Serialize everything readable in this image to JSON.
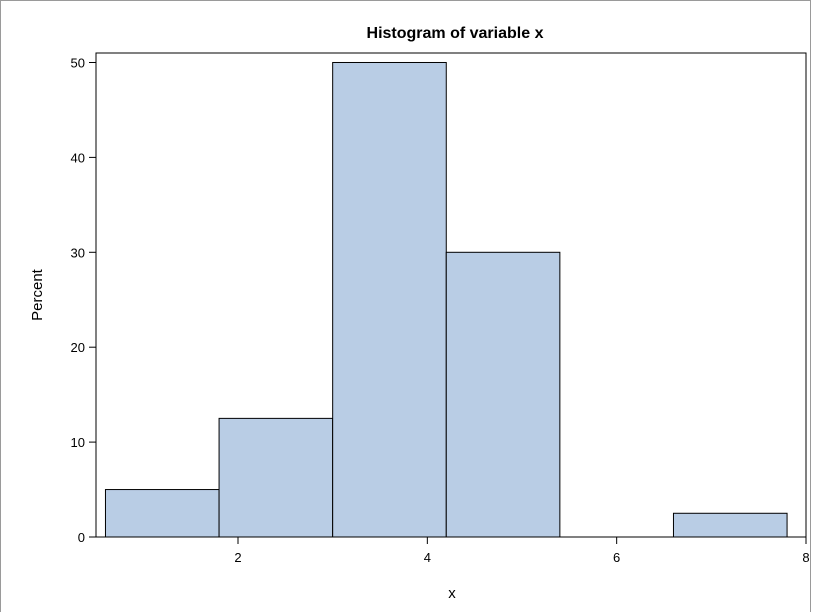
{
  "chart_data": {
    "type": "bar",
    "title": "Histogram of variable x",
    "xlabel": "x",
    "ylabel": "Percent",
    "xlim": [
      0.5,
      8
    ],
    "ylim": [
      0,
      51
    ],
    "x_ticks": [
      2,
      4,
      6,
      8
    ],
    "y_ticks": [
      0,
      10,
      20,
      30,
      40,
      50
    ],
    "bins": [
      {
        "start": 0.6,
        "end": 1.8,
        "value": 5
      },
      {
        "start": 1.8,
        "end": 3.0,
        "value": 12.5
      },
      {
        "start": 3.0,
        "end": 4.2,
        "value": 50
      },
      {
        "start": 4.2,
        "end": 5.4,
        "value": 30
      },
      {
        "start": 5.4,
        "end": 6.6,
        "value": 0
      },
      {
        "start": 6.6,
        "end": 7.8,
        "value": 2.5
      }
    ],
    "bar_fill": "#b9cde5",
    "bar_stroke": "#000000",
    "grid": false,
    "legend": "none"
  }
}
